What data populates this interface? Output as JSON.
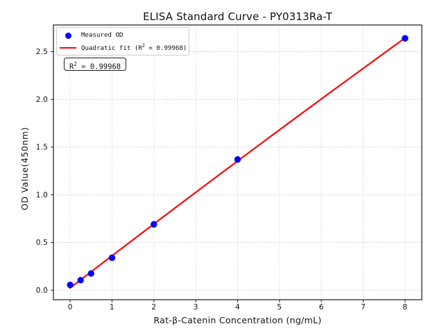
{
  "figure": {
    "title": "ELISA Standard Curve - PY0313Ra-T",
    "xlabel": "Rat-β-Catenin Concentration (ng/mL)",
    "ylabel": "OD Value(450nm)",
    "annotation_box": "R² = 0.99968",
    "legend": [
      {
        "label": "Measured OD",
        "marker": "dot",
        "color": "#0000ff"
      },
      {
        "label": "Quadratic fit (R² = 0.99968)",
        "marker": "line",
        "color": "#ff0000"
      }
    ]
  },
  "chart_data": {
    "type": "scatter",
    "title": "ELISA Standard Curve - PY0313Ra-T",
    "xlabel": "Rat-β-Catenin Concentration (ng/mL)",
    "ylabel": "OD Value(450nm)",
    "series": [
      {
        "name": "Measured OD",
        "type": "scatter",
        "color": "#0000ff",
        "x": [
          0,
          0.25,
          0.5,
          1,
          2,
          4,
          8
        ],
        "y": [
          0.055,
          0.105,
          0.175,
          0.34,
          0.69,
          1.37,
          2.64
        ]
      },
      {
        "name": "Quadratic fit (R² = 0.99968)",
        "type": "quadratic-fit",
        "color": "#ff0000",
        "r_squared": 0.99968
      }
    ],
    "xlim": [
      -0.4,
      8.4
    ],
    "ylim": [
      -0.1,
      2.78
    ],
    "xticks": {
      "values": [
        0,
        1,
        2,
        3,
        4,
        5,
        6,
        7,
        8
      ],
      "labels": [
        "0",
        "1",
        "2",
        "3",
        "4",
        "5",
        "6",
        "7",
        "8"
      ]
    },
    "yticks": {
      "values": [
        0,
        0.5,
        1,
        1.5,
        2,
        2.5
      ],
      "labels": [
        "0.0",
        "0.5",
        "1.0",
        "1.5",
        "2.0",
        "2.5"
      ]
    },
    "grid": true,
    "legend_position": "upper left",
    "annotation": "R² = 0.99968"
  },
  "style": {
    "grid_color": "#d4d4d4",
    "spine_color": "#2a2a2a",
    "tick_color": "#2a2a2a",
    "text_color": "#111111",
    "background": "#ffffff",
    "legend_border": "#cccccc"
  }
}
